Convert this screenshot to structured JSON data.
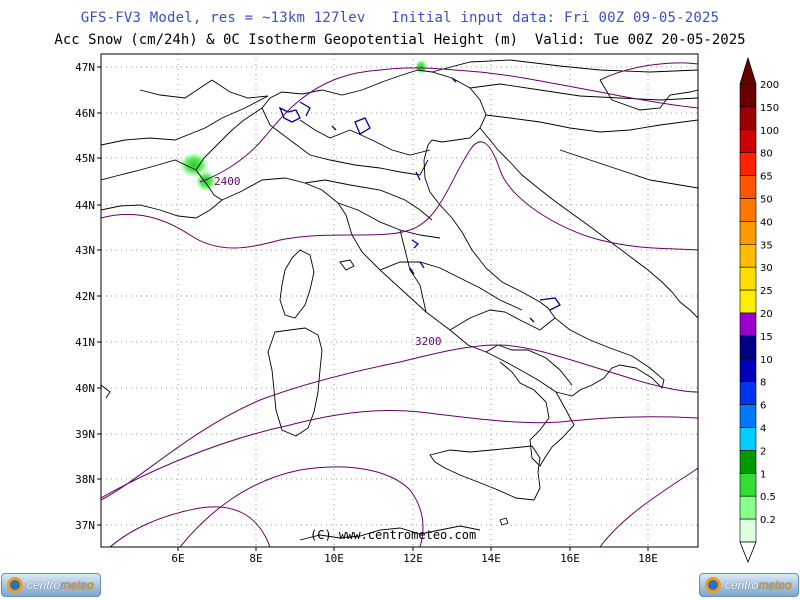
{
  "header": {
    "title_line1": "GFS-FV3 Model, res = ~13km 127lev   Initial input data: Fri 00Z 09-05-2025",
    "title_line2": "Acc Snow (cm/24h) & 0C Isotherm Geopotential Height (m)  Valid: Tue 00Z 20-05-2025"
  },
  "map": {
    "lat_labels": [
      "47N",
      "46N",
      "45N",
      "44N",
      "43N",
      "42N",
      "41N",
      "40N",
      "39N",
      "38N",
      "37N"
    ],
    "lon_labels": [
      "6E",
      "8E",
      "10E",
      "12E",
      "14E",
      "16E",
      "18E"
    ],
    "contour_labels": [
      "2400",
      "3200"
    ],
    "copyright": "(C) www.centrometeo.com",
    "border_color": "#000000",
    "isotherm_color": "#660066",
    "lake_color": "#000099",
    "snow_color": "#33cc33"
  },
  "legend": {
    "levels": [
      "200",
      "150",
      "100",
      "80",
      "65",
      "50",
      "40",
      "35",
      "30",
      "25",
      "20",
      "15",
      "10",
      "8",
      "6",
      "4",
      "2",
      "1",
      "0.5",
      "0.2"
    ],
    "colors": [
      "#660000",
      "#990000",
      "#cc0000",
      "#ff2200",
      "#ff5500",
      "#ff7700",
      "#ff9900",
      "#ffbb00",
      "#ffdd00",
      "#ffee00",
      "#9900cc",
      "#000088",
      "#0000bb",
      "#0033ee",
      "#0077ff",
      "#00ccff",
      "#009900",
      "#33dd33",
      "#88ff88",
      "#ddffdd"
    ]
  },
  "logos": {
    "brand_prefix": "centro",
    "brand_suffix": "meteo"
  }
}
